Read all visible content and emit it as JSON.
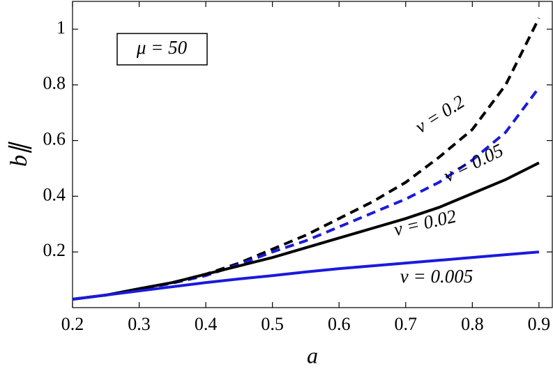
{
  "chart_data": {
    "type": "line",
    "x_label": "a",
    "y_label": "b∥",
    "annotation": "μ = 50",
    "x": [
      0.2,
      0.25,
      0.3,
      0.35,
      0.4,
      0.45,
      0.5,
      0.55,
      0.6,
      0.65,
      0.7,
      0.75,
      0.8,
      0.85,
      0.9
    ],
    "series": [
      {
        "name": "v = 0.2",
        "color": "#000000",
        "dash": true,
        "values": [
          0.03,
          0.045,
          0.065,
          0.09,
          0.12,
          0.16,
          0.21,
          0.26,
          0.32,
          0.38,
          0.45,
          0.54,
          0.64,
          0.8,
          1.04
        ]
      },
      {
        "name": "v = 0.05",
        "color": "#1a1adc",
        "dash": true,
        "values": [
          0.03,
          0.045,
          0.065,
          0.088,
          0.115,
          0.155,
          0.2,
          0.24,
          0.29,
          0.34,
          0.39,
          0.45,
          0.53,
          0.63,
          0.79
        ]
      },
      {
        "name": "v = 0.02",
        "color": "#000000",
        "dash": false,
        "values": [
          0.03,
          0.045,
          0.068,
          0.09,
          0.12,
          0.15,
          0.18,
          0.215,
          0.25,
          0.285,
          0.32,
          0.36,
          0.41,
          0.46,
          0.52
        ]
      },
      {
        "name": "v = 0.005",
        "color": "#1a1adc",
        "dash": false,
        "values": [
          0.03,
          0.045,
          0.06,
          0.075,
          0.09,
          0.103,
          0.115,
          0.128,
          0.14,
          0.15,
          0.16,
          0.17,
          0.18,
          0.19,
          0.2
        ]
      }
    ],
    "xlim": [
      0.2,
      0.92
    ],
    "ylim": [
      0,
      1.1
    ],
    "xticks": [
      0.2,
      0.3,
      0.4,
      0.5,
      0.6,
      0.7,
      0.8,
      0.9
    ],
    "yticks": [
      0.2,
      0.4,
      0.6,
      0.8,
      1
    ],
    "grid": false
  }
}
